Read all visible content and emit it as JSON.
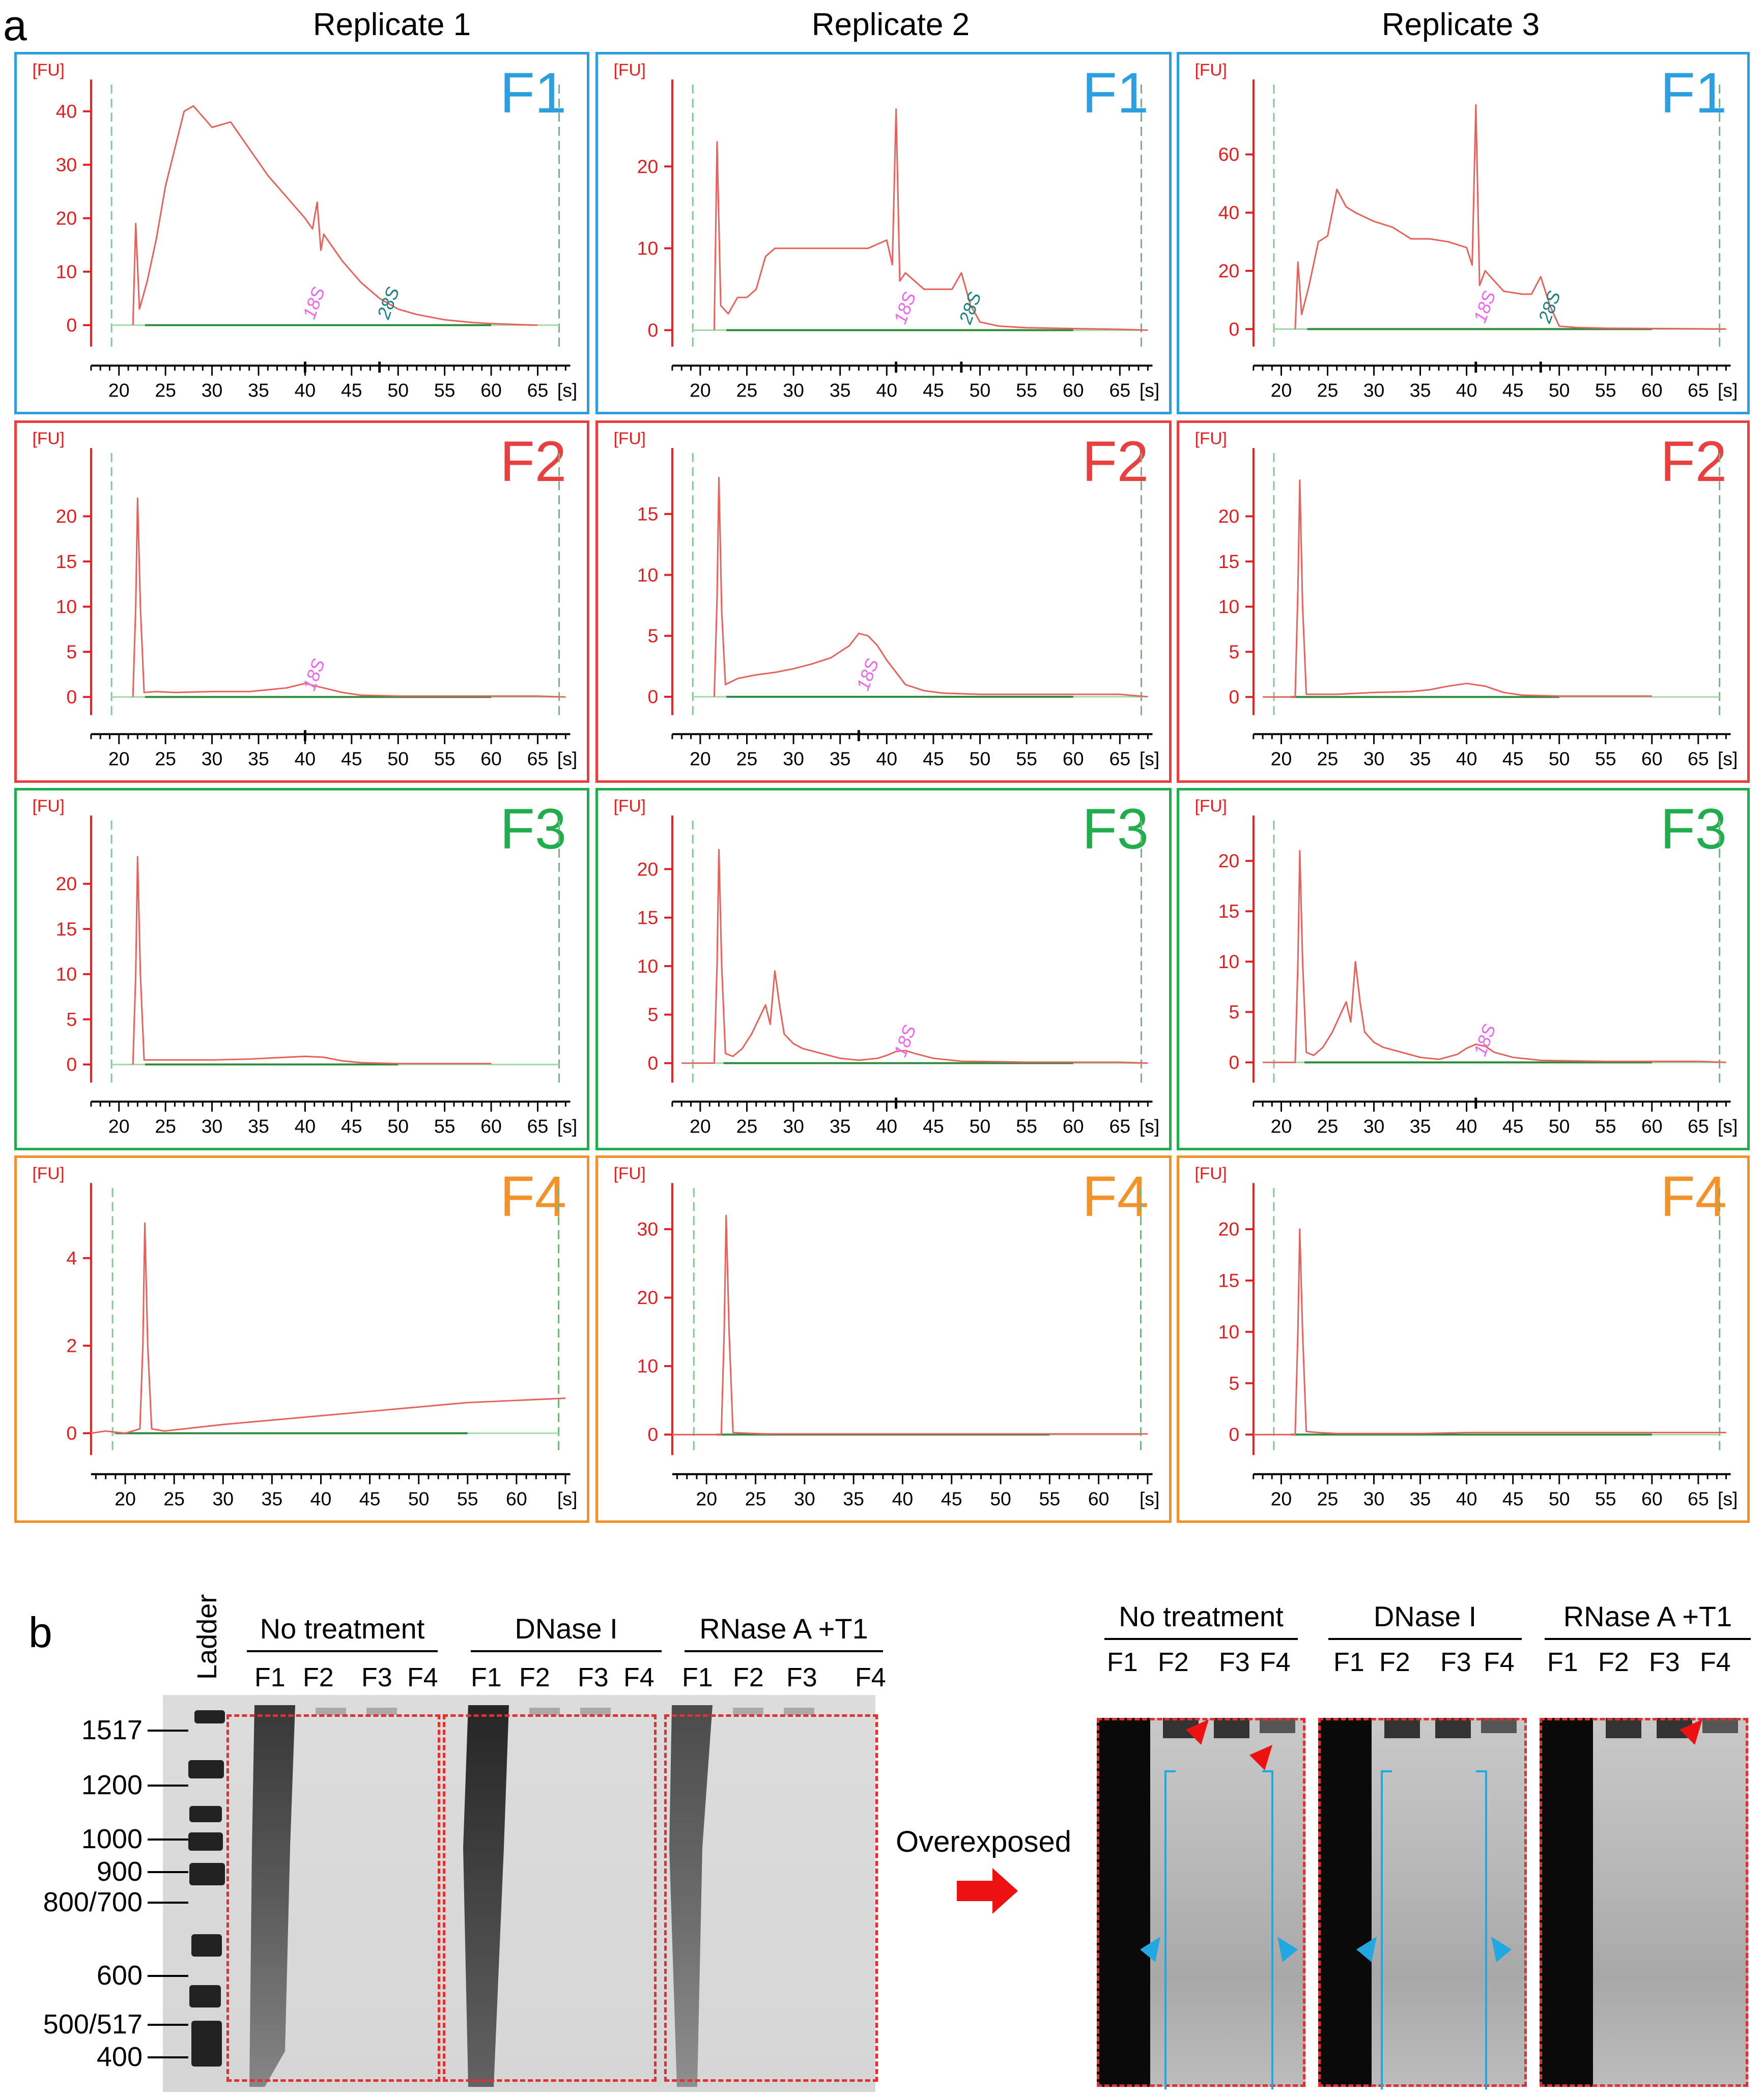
{
  "panel_a_label": "a",
  "panel_b_label": "b",
  "replicates": [
    "Replicate 1",
    "Replicate 2",
    "Replicate 3"
  ],
  "colors": {
    "F1": "#2b9fe0",
    "F2": "#e84040",
    "F3": "#1fae4b",
    "F4": "#f2922a",
    "trace": "#e8605a",
    "baseline": "#2e8b3c",
    "axis_red": "#e02020",
    "marker_18S": "#ee66ee",
    "marker_28S": "#1a8080"
  },
  "chart_data": [
    {
      "type": "line",
      "fraction": "F1",
      "replicate": "Replicate 1",
      "ylabel": "[FU]",
      "xunit": "[s]",
      "yticks": [
        0,
        10,
        20,
        30,
        40
      ],
      "xticks": [
        20,
        25,
        30,
        35,
        40,
        45,
        50,
        55,
        60,
        65
      ],
      "xlim": [
        17,
        68.5
      ],
      "ylim": [
        -4,
        45
      ],
      "markers": [
        {
          "label": "18S",
          "x": 40
        },
        {
          "label": "28S",
          "x": 48
        }
      ],
      "x": [
        21.5,
        21.8,
        22.2,
        23,
        24,
        25,
        26,
        27,
        28,
        30,
        32,
        34,
        36,
        38,
        40,
        40.8,
        41.3,
        41.7,
        42,
        44,
        46,
        48,
        50,
        52,
        55,
        58,
        60,
        63,
        65
      ],
      "y": [
        0,
        19,
        3,
        8,
        16,
        26,
        33,
        40,
        41,
        37,
        38,
        33,
        28,
        24,
        20,
        18,
        23,
        14,
        17,
        12,
        8,
        5,
        3,
        2,
        1,
        0.5,
        0.3,
        0.1,
        0
      ]
    },
    {
      "type": "line",
      "fraction": "F1",
      "replicate": "Replicate 2",
      "ylabel": "[FU]",
      "xunit": "[s]",
      "yticks": [
        0,
        10,
        20
      ],
      "xticks": [
        20,
        25,
        30,
        35,
        40,
        45,
        50,
        55,
        60,
        65
      ],
      "xlim": [
        17,
        68.5
      ],
      "ylim": [
        -2,
        30
      ],
      "markers": [
        {
          "label": "18S",
          "x": 41
        },
        {
          "label": "28S",
          "x": 48
        }
      ],
      "x": [
        21.5,
        21.8,
        22.2,
        23,
        24,
        25,
        26,
        27,
        28,
        30,
        32,
        34,
        36,
        38,
        40,
        40.6,
        41,
        41.4,
        42,
        44,
        46,
        47,
        48,
        49,
        50,
        52,
        55,
        60,
        65,
        68
      ],
      "y": [
        0,
        23,
        3,
        2,
        4,
        4,
        5,
        9,
        10,
        10,
        10,
        10,
        10,
        10,
        11,
        8,
        27,
        6,
        7,
        5,
        5,
        5,
        7,
        3,
        1,
        0.5,
        0.3,
        0.2,
        0.1,
        0
      ]
    },
    {
      "type": "line",
      "fraction": "F1",
      "replicate": "Replicate 3",
      "ylabel": "[FU]",
      "xunit": "[s]",
      "yticks": [
        0,
        20,
        40,
        60
      ],
      "xticks": [
        20,
        25,
        30,
        35,
        40,
        45,
        50,
        55,
        60,
        65
      ],
      "xlim": [
        17,
        68.5
      ],
      "ylim": [
        -6,
        84
      ],
      "markers": [
        {
          "label": "18S",
          "x": 41
        },
        {
          "label": "28S",
          "x": 48
        }
      ],
      "x": [
        21.5,
        21.8,
        22.2,
        23,
        24,
        25,
        26,
        27,
        28,
        30,
        32,
        34,
        36,
        38,
        40,
        40.6,
        41,
        41.4,
        42,
        44,
        46,
        47,
        48,
        49,
        50,
        52,
        55,
        60,
        65,
        68
      ],
      "y": [
        0,
        23,
        5,
        15,
        30,
        32,
        48,
        42,
        40,
        37,
        35,
        31,
        31,
        30,
        28,
        22,
        77,
        15,
        20,
        13,
        12,
        12,
        18,
        8,
        1,
        0.5,
        0.3,
        0.2,
        0.1,
        0
      ]
    },
    {
      "type": "line",
      "fraction": "F2",
      "replicate": "Replicate 1",
      "ylabel": "[FU]",
      "xunit": "[s]",
      "yticks": [
        0,
        5,
        10,
        15,
        20
      ],
      "xticks": [
        20,
        25,
        30,
        35,
        40,
        45,
        50,
        55,
        60,
        65
      ],
      "xlim": [
        17,
        68.5
      ],
      "ylim": [
        -2,
        27
      ],
      "markers": [
        {
          "label": "18S",
          "x": 40
        }
      ],
      "x": [
        21.5,
        21.8,
        22,
        22.3,
        22.7,
        24,
        26,
        30,
        34,
        36,
        38,
        40,
        42,
        44,
        46,
        50,
        55,
        60,
        65,
        68
      ],
      "y": [
        0,
        10,
        22,
        10,
        0.5,
        0.6,
        0.5,
        0.6,
        0.6,
        0.8,
        1,
        1.5,
        1,
        0.5,
        0.2,
        0.1,
        0.1,
        0.1,
        0.1,
        0
      ]
    },
    {
      "type": "line",
      "fraction": "F2",
      "replicate": "Replicate 2",
      "ylabel": "[FU]",
      "xunit": "[s]",
      "yticks": [
        0,
        5,
        10,
        15
      ],
      "xticks": [
        20,
        25,
        30,
        35,
        40,
        45,
        50,
        55,
        60,
        65
      ],
      "xlim": [
        17,
        68.5
      ],
      "ylim": [
        -1.5,
        20
      ],
      "markers": [
        {
          "label": "18S",
          "x": 37
        }
      ],
      "x": [
        21.5,
        21.8,
        22,
        22.3,
        22.7,
        24,
        26,
        28,
        30,
        32,
        34,
        36,
        37,
        38,
        39,
        40,
        42,
        44,
        46,
        50,
        55,
        60,
        65,
        68
      ],
      "y": [
        0,
        8,
        18,
        7,
        1,
        1.5,
        1.8,
        2,
        2.3,
        2.7,
        3.2,
        4.2,
        5.2,
        5,
        4.2,
        3,
        1,
        0.5,
        0.3,
        0.2,
        0.2,
        0.2,
        0.2,
        0
      ]
    },
    {
      "type": "line",
      "fraction": "F2",
      "replicate": "Replicate 3",
      "ylabel": "[FU]",
      "xunit": "[s]",
      "yticks": [
        0,
        5,
        10,
        15,
        20
      ],
      "xticks": [
        20,
        25,
        30,
        35,
        40,
        45,
        50,
        55,
        60,
        65
      ],
      "xlim": [
        17,
        68.5
      ],
      "ylim": [
        -2,
        27
      ],
      "markers": [],
      "x": [
        18,
        20,
        21.5,
        21.8,
        22,
        22.3,
        22.7,
        24,
        26,
        30,
        34,
        36,
        38,
        40,
        42,
        44,
        46,
        50,
        55,
        60
      ],
      "y": [
        0,
        0,
        0,
        12,
        24,
        10,
        0.3,
        0.3,
        0.3,
        0.5,
        0.6,
        0.8,
        1.2,
        1.5,
        1.2,
        0.5,
        0.2,
        0.1,
        0.1,
        0.1
      ]
    },
    {
      "type": "line",
      "fraction": "F3",
      "replicate": "Replicate 1",
      "ylabel": "[FU]",
      "xunit": "[s]",
      "yticks": [
        0,
        5,
        10,
        15,
        20
      ],
      "xticks": [
        20,
        25,
        30,
        35,
        40,
        45,
        50,
        55,
        60,
        65
      ],
      "xlim": [
        17,
        68.5
      ],
      "ylim": [
        -2,
        27
      ],
      "markers": [],
      "x": [
        21.5,
        21.8,
        22,
        22.3,
        22.7,
        24,
        26,
        30,
        34,
        36,
        38,
        40,
        42,
        44,
        46,
        50,
        55,
        60
      ],
      "y": [
        0,
        10,
        23,
        10,
        0.5,
        0.5,
        0.5,
        0.5,
        0.6,
        0.7,
        0.8,
        0.9,
        0.8,
        0.4,
        0.2,
        0.1,
        0.1,
        0.1
      ]
    },
    {
      "type": "line",
      "fraction": "F3",
      "replicate": "Replicate 2",
      "ylabel": "[FU]",
      "xunit": "[s]",
      "yticks": [
        0,
        5,
        10,
        15,
        20
      ],
      "xticks": [
        20,
        25,
        30,
        35,
        40,
        45,
        50,
        55,
        60,
        65
      ],
      "xlim": [
        17,
        68.5
      ],
      "ylim": [
        -2,
        25
      ],
      "markers": [
        {
          "label": "18S",
          "x": 41
        }
      ],
      "x": [
        18,
        21.5,
        21.8,
        22,
        22.3,
        22.7,
        23.5,
        24.5,
        25.5,
        26.5,
        27,
        27.5,
        28,
        28.5,
        29,
        30,
        31,
        33,
        35,
        37,
        39,
        40,
        41,
        42,
        43,
        45,
        48,
        55,
        60,
        65,
        68
      ],
      "y": [
        0,
        0,
        10,
        22,
        10,
        1,
        0.7,
        1.5,
        3,
        5,
        6,
        4,
        9.5,
        6,
        3,
        2,
        1.5,
        1,
        0.5,
        0.3,
        0.5,
        0.8,
        1.2,
        1.3,
        1,
        0.5,
        0.2,
        0.1,
        0.1,
        0.1,
        0
      ]
    },
    {
      "type": "line",
      "fraction": "F3",
      "replicate": "Replicate 3",
      "ylabel": "[FU]",
      "xunit": "[s]",
      "yticks": [
        0,
        5,
        10,
        15,
        20
      ],
      "xticks": [
        20,
        25,
        30,
        35,
        40,
        45,
        50,
        55,
        60,
        65
      ],
      "xlim": [
        17,
        68.5
      ],
      "ylim": [
        -2,
        24
      ],
      "markers": [
        {
          "label": "18S",
          "x": 41
        }
      ],
      "x": [
        18,
        21.5,
        21.8,
        22,
        22.3,
        22.7,
        23.5,
        24.5,
        25.5,
        26.5,
        27,
        27.5,
        28,
        28.5,
        29,
        30,
        31,
        33,
        35,
        37,
        39,
        40,
        41,
        42,
        43,
        45,
        48,
        55,
        60,
        65,
        68
      ],
      "y": [
        0,
        0,
        10,
        21,
        10,
        1,
        0.7,
        1.5,
        3,
        5,
        6,
        4,
        10,
        6,
        3,
        2,
        1.5,
        1,
        0.5,
        0.3,
        0.8,
        1.4,
        1.8,
        1.6,
        1,
        0.5,
        0.2,
        0.1,
        0.1,
        0.1,
        0
      ]
    },
    {
      "type": "line",
      "fraction": "F4",
      "replicate": "Replicate 1",
      "ylabel": "[FU]",
      "xunit": "[s]",
      "yticks": [
        0,
        2,
        4
      ],
      "xticks": [
        20,
        25,
        30,
        35,
        40,
        45,
        50,
        55,
        60
      ],
      "xlim": [
        16.5,
        65.5
      ],
      "ylim": [
        -0.5,
        5.6
      ],
      "markers": [],
      "x": [
        16.5,
        18,
        20,
        21.5,
        21.8,
        22,
        22.3,
        22.7,
        24,
        26,
        30,
        35,
        40,
        45,
        50,
        55,
        60,
        65
      ],
      "y": [
        0,
        0.05,
        0,
        0.1,
        2,
        4.8,
        2,
        0.1,
        0.05,
        0.1,
        0.2,
        0.3,
        0.4,
        0.5,
        0.6,
        0.7,
        0.75,
        0.8
      ]
    },
    {
      "type": "line",
      "fraction": "F4",
      "replicate": "Replicate 2",
      "ylabel": "[FU]",
      "xunit": "[s]",
      "yticks": [
        0,
        10,
        20,
        30
      ],
      "xticks": [
        20,
        25,
        30,
        35,
        40,
        45,
        50,
        55,
        60
      ],
      "xlim": [
        16.5,
        65.5
      ],
      "ylim": [
        -3,
        36
      ],
      "markers": [],
      "x": [
        16.5,
        20,
        21.5,
        21.8,
        22,
        22.3,
        22.7,
        24,
        26,
        30,
        35,
        40,
        45,
        50,
        55,
        60,
        65
      ],
      "y": [
        0,
        0,
        0,
        15,
        32,
        15,
        0.3,
        0.2,
        0.1,
        0.1,
        0.1,
        0.1,
        0.1,
        0.1,
        0.1,
        0.1,
        0.1
      ]
    },
    {
      "type": "line",
      "fraction": "F4",
      "replicate": "Replicate 3",
      "ylabel": "[FU]",
      "xunit": "[s]",
      "yticks": [
        0,
        5,
        10,
        15,
        20
      ],
      "xticks": [
        20,
        25,
        30,
        35,
        40,
        45,
        50,
        55,
        60,
        65
      ],
      "xlim": [
        17,
        68.5
      ],
      "ylim": [
        -2,
        24
      ],
      "markers": [],
      "x": [
        17,
        20,
        21.5,
        21.8,
        22,
        22.3,
        22.7,
        24,
        26,
        30,
        35,
        40,
        45,
        50,
        55,
        60,
        65,
        68
      ],
      "y": [
        0,
        0,
        0,
        10,
        20,
        10,
        0.3,
        0.2,
        0.1,
        0.1,
        0.1,
        0.2,
        0.2,
        0.2,
        0.2,
        0.2,
        0.2,
        0.2
      ]
    }
  ],
  "gel": {
    "ladder_title": "Ladder",
    "ladder_sizes": [
      "1517",
      "1200",
      "1000",
      "900",
      "800/700",
      "600",
      "500/517",
      "400"
    ],
    "groups": [
      "No treatment",
      "DNase I",
      "RNase A +T1"
    ],
    "lanes": [
      "F1",
      "F2",
      "F3",
      "F4"
    ],
    "overexposed_label": "Overexposed"
  }
}
